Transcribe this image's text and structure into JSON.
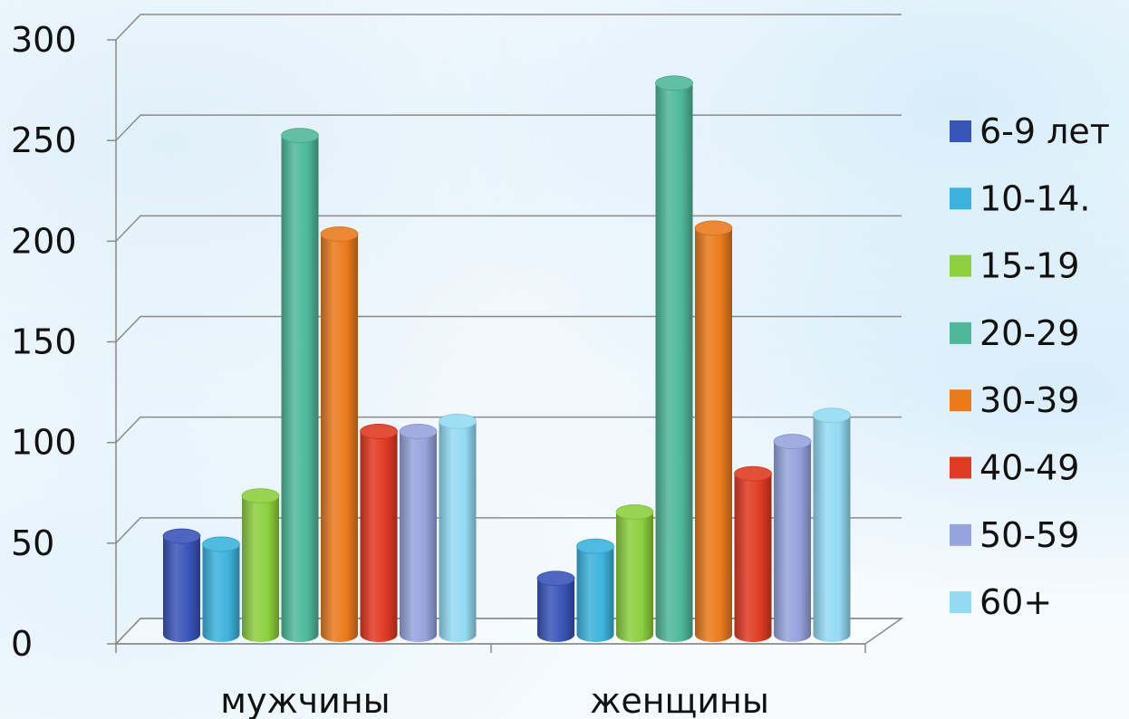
{
  "chart_data": {
    "type": "bar",
    "title": "",
    "xlabel": "",
    "ylabel": "",
    "ylim": [
      0,
      300
    ],
    "y_ticks": [
      0,
      50,
      100,
      150,
      200,
      250,
      300
    ],
    "grid": true,
    "legend_position": "right",
    "categories": [
      "мужчины",
      "женщины"
    ],
    "series": [
      {
        "name": "6-9 лет",
        "values": [
          49,
          28
        ],
        "color": "#3a55b8"
      },
      {
        "name": "10-14.",
        "values": [
          45,
          44
        ],
        "color": "#3cb3dc"
      },
      {
        "name": "15-19",
        "values": [
          69,
          61
        ],
        "color": "#8dcf3f"
      },
      {
        "name": "20-29",
        "values": [
          248,
          274
        ],
        "color": "#4fb89a"
      },
      {
        "name": "30-39",
        "values": [
          199,
          202
        ],
        "color": "#ea7a1c"
      },
      {
        "name": "40-49",
        "values": [
          101,
          80
        ],
        "color": "#e03a22"
      },
      {
        "name": "50-59",
        "values": [
          101,
          96
        ],
        "color": "#96a3dc"
      },
      {
        "name": "60+",
        "values": [
          106,
          109
        ],
        "color": "#93dbf3"
      }
    ]
  }
}
